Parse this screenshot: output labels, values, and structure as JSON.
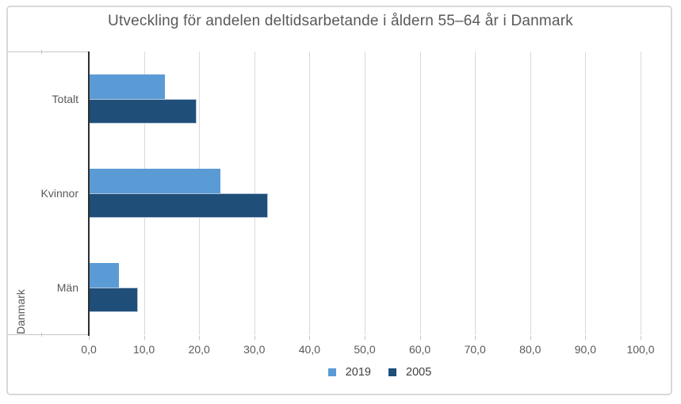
{
  "chart": {
    "title": "Utveckling för andelen deltidsarbetande i åldern 55–64 år i Danmark",
    "group_label": "Danmark"
  },
  "colors": {
    "frame_border": "#d9d9d9",
    "gridline": "#d9d9d9",
    "axis_line": "#2e2e2e",
    "band_border": "#c6c6c6",
    "axis_text": "#595959",
    "title_text": "#595959",
    "legend_text": "#404040",
    "series_2019": "#5b9bd5",
    "series_2005": "#1f4e79"
  },
  "chart_data": {
    "type": "bar",
    "orientation": "horizontal",
    "title": "Utveckling för andelen deltidsarbetande i åldern 55–64 år i Danmark",
    "group_label": "Danmark",
    "categories": [
      "Totalt",
      "Kvinnor",
      "Män"
    ],
    "series": [
      {
        "name": "2019",
        "color": "#5b9bd5",
        "values": [
          13.8,
          23.8,
          5.5
        ]
      },
      {
        "name": "2005",
        "color": "#1f4e79",
        "border_color": "#b3c6d9",
        "values": [
          19.6,
          32.5,
          8.9
        ]
      }
    ],
    "xlabel": "",
    "ylabel": "Danmark",
    "xlim": [
      0,
      100
    ],
    "xtick_step": 10,
    "xtick_labels": [
      "0,0",
      "10,0",
      "20,0",
      "30,0",
      "40,0",
      "50,0",
      "60,0",
      "70,0",
      "80,0",
      "90,0",
      "100,0"
    ],
    "number_format": "decimal-comma",
    "grid": "vertical",
    "legend_position": "bottom"
  }
}
